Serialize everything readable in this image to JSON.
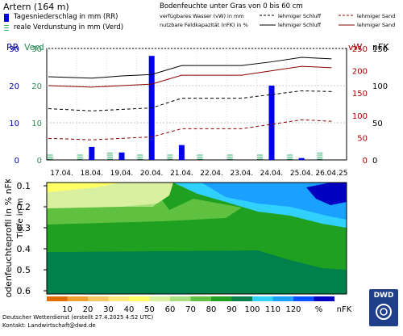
{
  "station": "Artern (164 m)",
  "legend_left": {
    "rr": "Tagesniederschlag in mm (RR)",
    "verd": "reale Verdunstung in mm (Verd)"
  },
  "legend_right": {
    "title": "Bodenfeuchte unter Gras von 0 bis 60 cm",
    "vw": "verfügbares Wasser (vW) in mm",
    "nfk": "nutzbare Feldkapazität (nFK) in %",
    "soil1": "lehmiger Schluff",
    "soil2": "lehmiger Sand"
  },
  "axis_labels": {
    "rr": "RR",
    "verd": "Verd",
    "vw": "vW",
    "nfk": "nFK"
  },
  "footer": {
    "line1": "Deutscher Wetterdienst (erstellt 27.4.2025 4:52 UTC)",
    "line2": "Kontakt: Landwirtschaft@dwd.de",
    "logo": "DWD"
  },
  "colors": {
    "precip": "#0000e6",
    "verd": "#3cb371",
    "soil1_line": "#000000",
    "soil2_line": "#8b0000",
    "blue_axis": "#0000aa",
    "green_axis": "#2e8b57",
    "red_axis": "#aa0000"
  },
  "chart_data": [
    {
      "type": "bar",
      "categories": [
        "17.04.",
        "18.04.",
        "19.04.",
        "20.04.",
        "21.04.",
        "22.04.",
        "23.04.",
        "24.04.",
        "25.04.",
        "26.04.25"
      ],
      "series": [
        {
          "name": "Tagesniederschlag in mm (RR)",
          "values": [
            0,
            3.5,
            2.0,
            28.0,
            4.0,
            0,
            0,
            20.0,
            0.5,
            0
          ]
        },
        {
          "name": "reale Verdunstung in mm (Verd)",
          "values": [
            0.8,
            0.8,
            1.2,
            1.0,
            0.8,
            0.8,
            1.0,
            0.8,
            1.0,
            1.2
          ]
        }
      ],
      "left_axes": [
        {
          "label": "RR",
          "range": [
            0,
            30
          ],
          "ticks": [
            0,
            10,
            20,
            30
          ]
        },
        {
          "label": "Verd",
          "range": [
            0,
            30
          ],
          "ticks": [
            0,
            10,
            20,
            30
          ]
        }
      ],
      "right_axes": [
        {
          "label": "vW",
          "range": [
            0,
            250
          ],
          "ticks": [
            0,
            50,
            100,
            150,
            200,
            250
          ]
        },
        {
          "label": "nFK",
          "range": [
            0,
            150
          ],
          "ticks": [
            0,
            50,
            100,
            150
          ]
        }
      ],
      "lines": [
        {
          "name": "lehmiger Schluff nFK",
          "style": "solid",
          "color": "#000000",
          "values": [
            112,
            110,
            113,
            115,
            127,
            127,
            127,
            132,
            138,
            136
          ]
        },
        {
          "name": "lehmiger Schluff vW",
          "style": "dashed",
          "color": "#000000",
          "values": [
            69,
            66,
            68,
            70,
            83,
            83,
            83,
            88,
            93,
            92
          ]
        },
        {
          "name": "lehmiger Sand nFK",
          "style": "solid",
          "color": "#8b0000",
          "values": [
            100,
            98,
            100,
            102,
            114,
            114,
            114,
            120,
            126,
            124
          ]
        },
        {
          "name": "lehmiger Sand vW",
          "style": "dashed",
          "color": "#8b0000",
          "values": [
            29,
            27,
            29,
            31,
            42,
            42,
            42,
            48,
            54,
            52
          ]
        }
      ],
      "grid": true
    },
    {
      "type": "heatmap",
      "ylabel": "Bodenfeuchteprofil in % nFK",
      "ylabel2": "Tiefe in m",
      "yrange": [
        0.1,
        0.6
      ],
      "yticks": [
        "0.1",
        "0.2",
        "0.3",
        "0.4",
        "0.5",
        "0.6"
      ],
      "colorbar": {
        "ticks": [
          "10",
          "20",
          "30",
          "40",
          "50",
          "60",
          "70",
          "80",
          "90",
          "100",
          "110",
          "120",
          "%",
          "nFK"
        ],
        "colors": [
          "#e06c00",
          "#f0a030",
          "#f8c860",
          "#ffe878",
          "#ffff66",
          "#d8f0a0",
          "#a8e080",
          "#60c040",
          "#20a020",
          "#00804a",
          "#30d0ff",
          "#1aa0ff",
          "#0050ff",
          "#0000c0"
        ]
      },
      "zones": [
        {
          "color": "#ffff66",
          "desc": "50"
        },
        {
          "color": "#d8f0a0",
          "desc": "60"
        },
        {
          "color": "#a8e080",
          "desc": "70"
        },
        {
          "color": "#60c040",
          "desc": "80"
        },
        {
          "color": "#20a020",
          "desc": "90"
        },
        {
          "color": "#00804a",
          "desc": "100"
        },
        {
          "color": "#30d0ff",
          "desc": "110"
        },
        {
          "color": "#1aa0ff",
          "desc": "120"
        },
        {
          "color": "#0000c0",
          "desc": ">120"
        }
      ]
    }
  ]
}
